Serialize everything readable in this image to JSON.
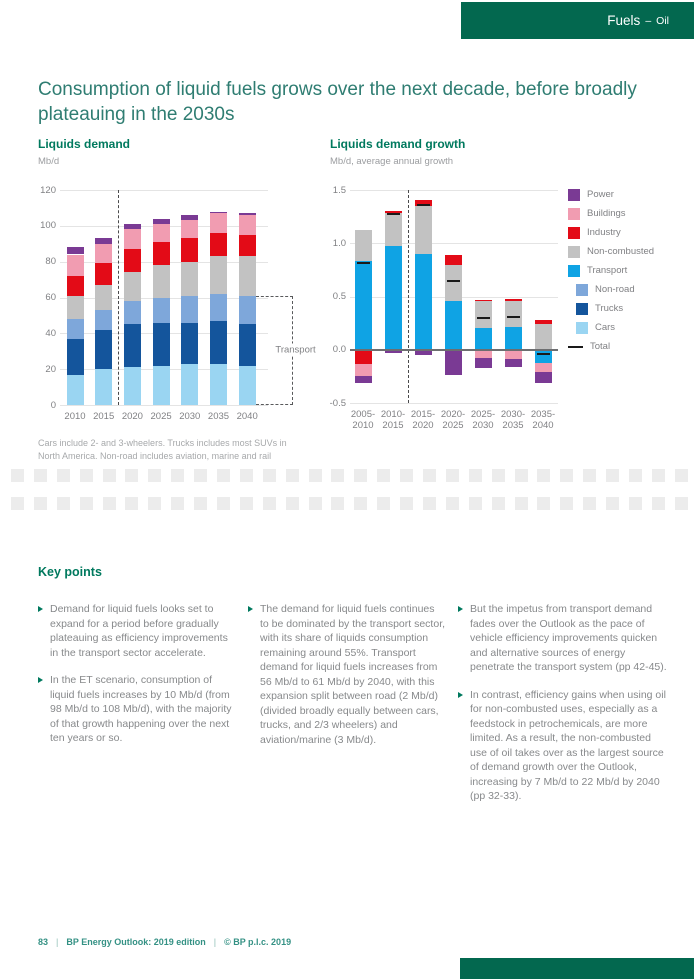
{
  "header": {
    "section": "Fuels",
    "dash": "–",
    "topic": "Oil"
  },
  "page_title": "Consumption of liquid fuels grows over the next decade, before broadly plateauing in the 2030s",
  "chart_data": [
    {
      "id": "liquids-demand",
      "type": "bar",
      "stacked": true,
      "title": "Liquids demand",
      "subtitle": "Mb/d",
      "ylabel": "Mb/d",
      "ylim": [
        0,
        120
      ],
      "yticks": [
        "120",
        "100",
        "80",
        "60",
        "40",
        "20",
        "0"
      ],
      "grid": true,
      "legend_position": "right",
      "categories": [
        "2010",
        "2015",
        "2020",
        "2025",
        "2030",
        "2035",
        "2040"
      ],
      "series": [
        {
          "name": "Cars",
          "color": "#9ad5f2",
          "values": [
            17,
            20,
            21,
            22,
            23,
            23,
            22
          ]
        },
        {
          "name": "Trucks",
          "color": "#14559c",
          "values": [
            20,
            22,
            24,
            24,
            23,
            24,
            23
          ]
        },
        {
          "name": "Non-road",
          "color": "#7ea7da",
          "values": [
            11,
            11,
            13,
            14,
            15,
            15,
            16
          ]
        },
        {
          "name": "Non-combusted",
          "color": "#c2c2c2",
          "values": [
            13,
            14,
            16,
            18,
            19,
            21,
            22
          ]
        },
        {
          "name": "Industry",
          "color": "#e30b17",
          "values": [
            11,
            12,
            13,
            13,
            13,
            13,
            12
          ]
        },
        {
          "name": "Buildings",
          "color": "#f19cb1",
          "values": [
            12,
            11,
            11,
            10,
            10,
            11,
            11
          ]
        },
        {
          "name": "Power",
          "color": "#7a3a94",
          "values": [
            4,
            3,
            3,
            3,
            3,
            1,
            1
          ]
        }
      ],
      "divider_after": "2015",
      "annotation": {
        "label": "Transport",
        "from": 0,
        "to": 61
      }
    },
    {
      "id": "liquids-demand-growth",
      "type": "bar",
      "stacked": true,
      "title": "Liquids demand growth",
      "subtitle": "Mb/d, average annual growth",
      "ylabel": "Mb/d, average annual growth",
      "ylim": [
        -0.5,
        1.5
      ],
      "yticks": [
        "1.5",
        "1.0",
        "0.5",
        "0.0",
        "-0.5"
      ],
      "grid": true,
      "categories": [
        "2005-2010",
        "2010-2015",
        "2015-2020",
        "2020-2025",
        "2025-2030",
        "2030-2035",
        "2035-2040"
      ],
      "series": [
        {
          "name": "Transport",
          "color": "#0fa3e4",
          "values": [
            0.83,
            0.97,
            0.9,
            0.46,
            0.2,
            0.21,
            -0.12
          ]
        },
        {
          "name": "Non-combusted",
          "color": "#c2c2c2",
          "values": [
            0.29,
            0.31,
            0.45,
            0.34,
            0.26,
            0.25,
            0.24
          ]
        },
        {
          "name": "Industry",
          "color": "#e30b17",
          "values": [
            -0.13,
            0.02,
            0.06,
            0.09,
            0.01,
            0.02,
            0.04
          ]
        },
        {
          "name": "Buildings",
          "color": "#f19cb1",
          "values": [
            -0.12,
            0,
            0,
            0,
            -0.08,
            -0.09,
            -0.09
          ]
        },
        {
          "name": "Power",
          "color": "#7a3a94",
          "values": [
            -0.06,
            -0.03,
            -0.05,
            -0.24,
            -0.09,
            -0.07,
            -0.1
          ]
        }
      ],
      "total": {
        "name": "Total",
        "color": "#1a1a1a",
        "values": [
          0.81,
          1.27,
          1.36,
          0.65,
          0.3,
          0.31,
          -0.04
        ]
      },
      "divider_after": "2010-2015"
    }
  ],
  "legend": {
    "items": [
      {
        "label": "Power",
        "color": "#7a3a94",
        "indent": false,
        "swatch": "square"
      },
      {
        "label": "Buildings",
        "color": "#f19cb1",
        "indent": false,
        "swatch": "square"
      },
      {
        "label": "Industry",
        "color": "#e30b17",
        "indent": false,
        "swatch": "square"
      },
      {
        "label": "Non-combusted",
        "color": "#c2c2c2",
        "indent": false,
        "swatch": "square"
      },
      {
        "label": "Transport",
        "color": "#0fa3e4",
        "indent": false,
        "swatch": "square"
      },
      {
        "label": "Non-road",
        "color": "#7ea7da",
        "indent": true,
        "swatch": "square"
      },
      {
        "label": "Trucks",
        "color": "#14559c",
        "indent": true,
        "swatch": "square"
      },
      {
        "label": "Cars",
        "color": "#9ad5f2",
        "indent": true,
        "swatch": "square"
      },
      {
        "label": "Total",
        "color": "#1a1a1a",
        "indent": false,
        "swatch": "line"
      }
    ]
  },
  "footnote": "Cars include 2- and 3-wheelers. Trucks includes most SUVs in North America. Non-road includes aviation, marine and rail",
  "key_points": {
    "heading": "Key points",
    "columns": [
      [
        "Demand for liquid fuels looks set to expand for a period before gradually plateauing as efficiency improvements in the transport sector accelerate.",
        "In the ET scenario, consumption of liquid fuels increases by 10 Mb/d (from 98 Mb/d to 108 Mb/d), with the majority of that growth happening over the next ten years or so."
      ],
      [
        "The demand for liquid fuels continues to be dominated by the transport sector, with its share of liquids consumption remaining around 55%. Transport demand for liquid fuels increases from 56 Mb/d to 61 Mb/d by 2040, with this expansion split between road (2 Mb/d) (divided broadly equally between cars, trucks, and 2/3 wheelers) and aviation/marine (3 Mb/d)."
      ],
      [
        "But the impetus from transport demand fades over the Outlook as the pace of vehicle efficiency improvements quicken and alternative sources of energy penetrate the transport system (pp 42-45).",
        "In contrast, efficiency gains when using oil for non-combusted uses, especially as a feedstock in petrochemicals, are more limited. As a result, the non-combusted use of oil takes over as the largest source of demand growth over the Outlook, increasing by 7 Mb/d to 22 Mb/d by 2040 (pp 32-33)."
      ]
    ]
  },
  "footer": {
    "page": "83",
    "separator": "|",
    "edition": "BP Energy Outlook: 2019 edition",
    "copyright": "© BP p.l.c. 2019"
  }
}
